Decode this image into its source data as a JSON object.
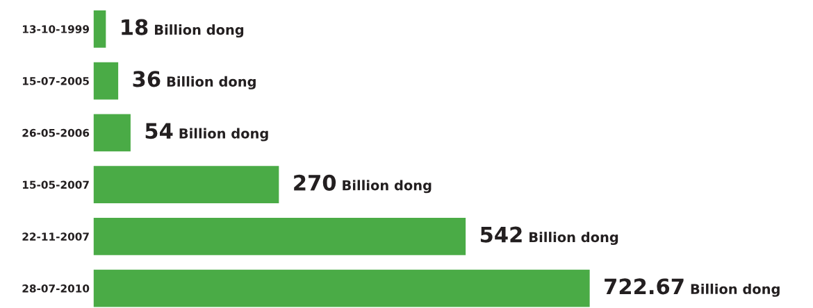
{
  "chart_data": {
    "type": "bar",
    "orientation": "horizontal",
    "categories": [
      "13-10-1999",
      "15-07-2005",
      "26-05-2006",
      "15-05-2007",
      "22-11-2007",
      "28-07-2010"
    ],
    "values": [
      18,
      36,
      54,
      270,
      542,
      722.67
    ],
    "color": "#4aab46",
    "value_labels": [
      "18 Billion dong",
      "36 Billion dong",
      "54 Billion dong",
      "270 Billion dong",
      "542 Billion dong",
      "722.67 Billion dong"
    ],
    "grid": false,
    "legend": false
  }
}
